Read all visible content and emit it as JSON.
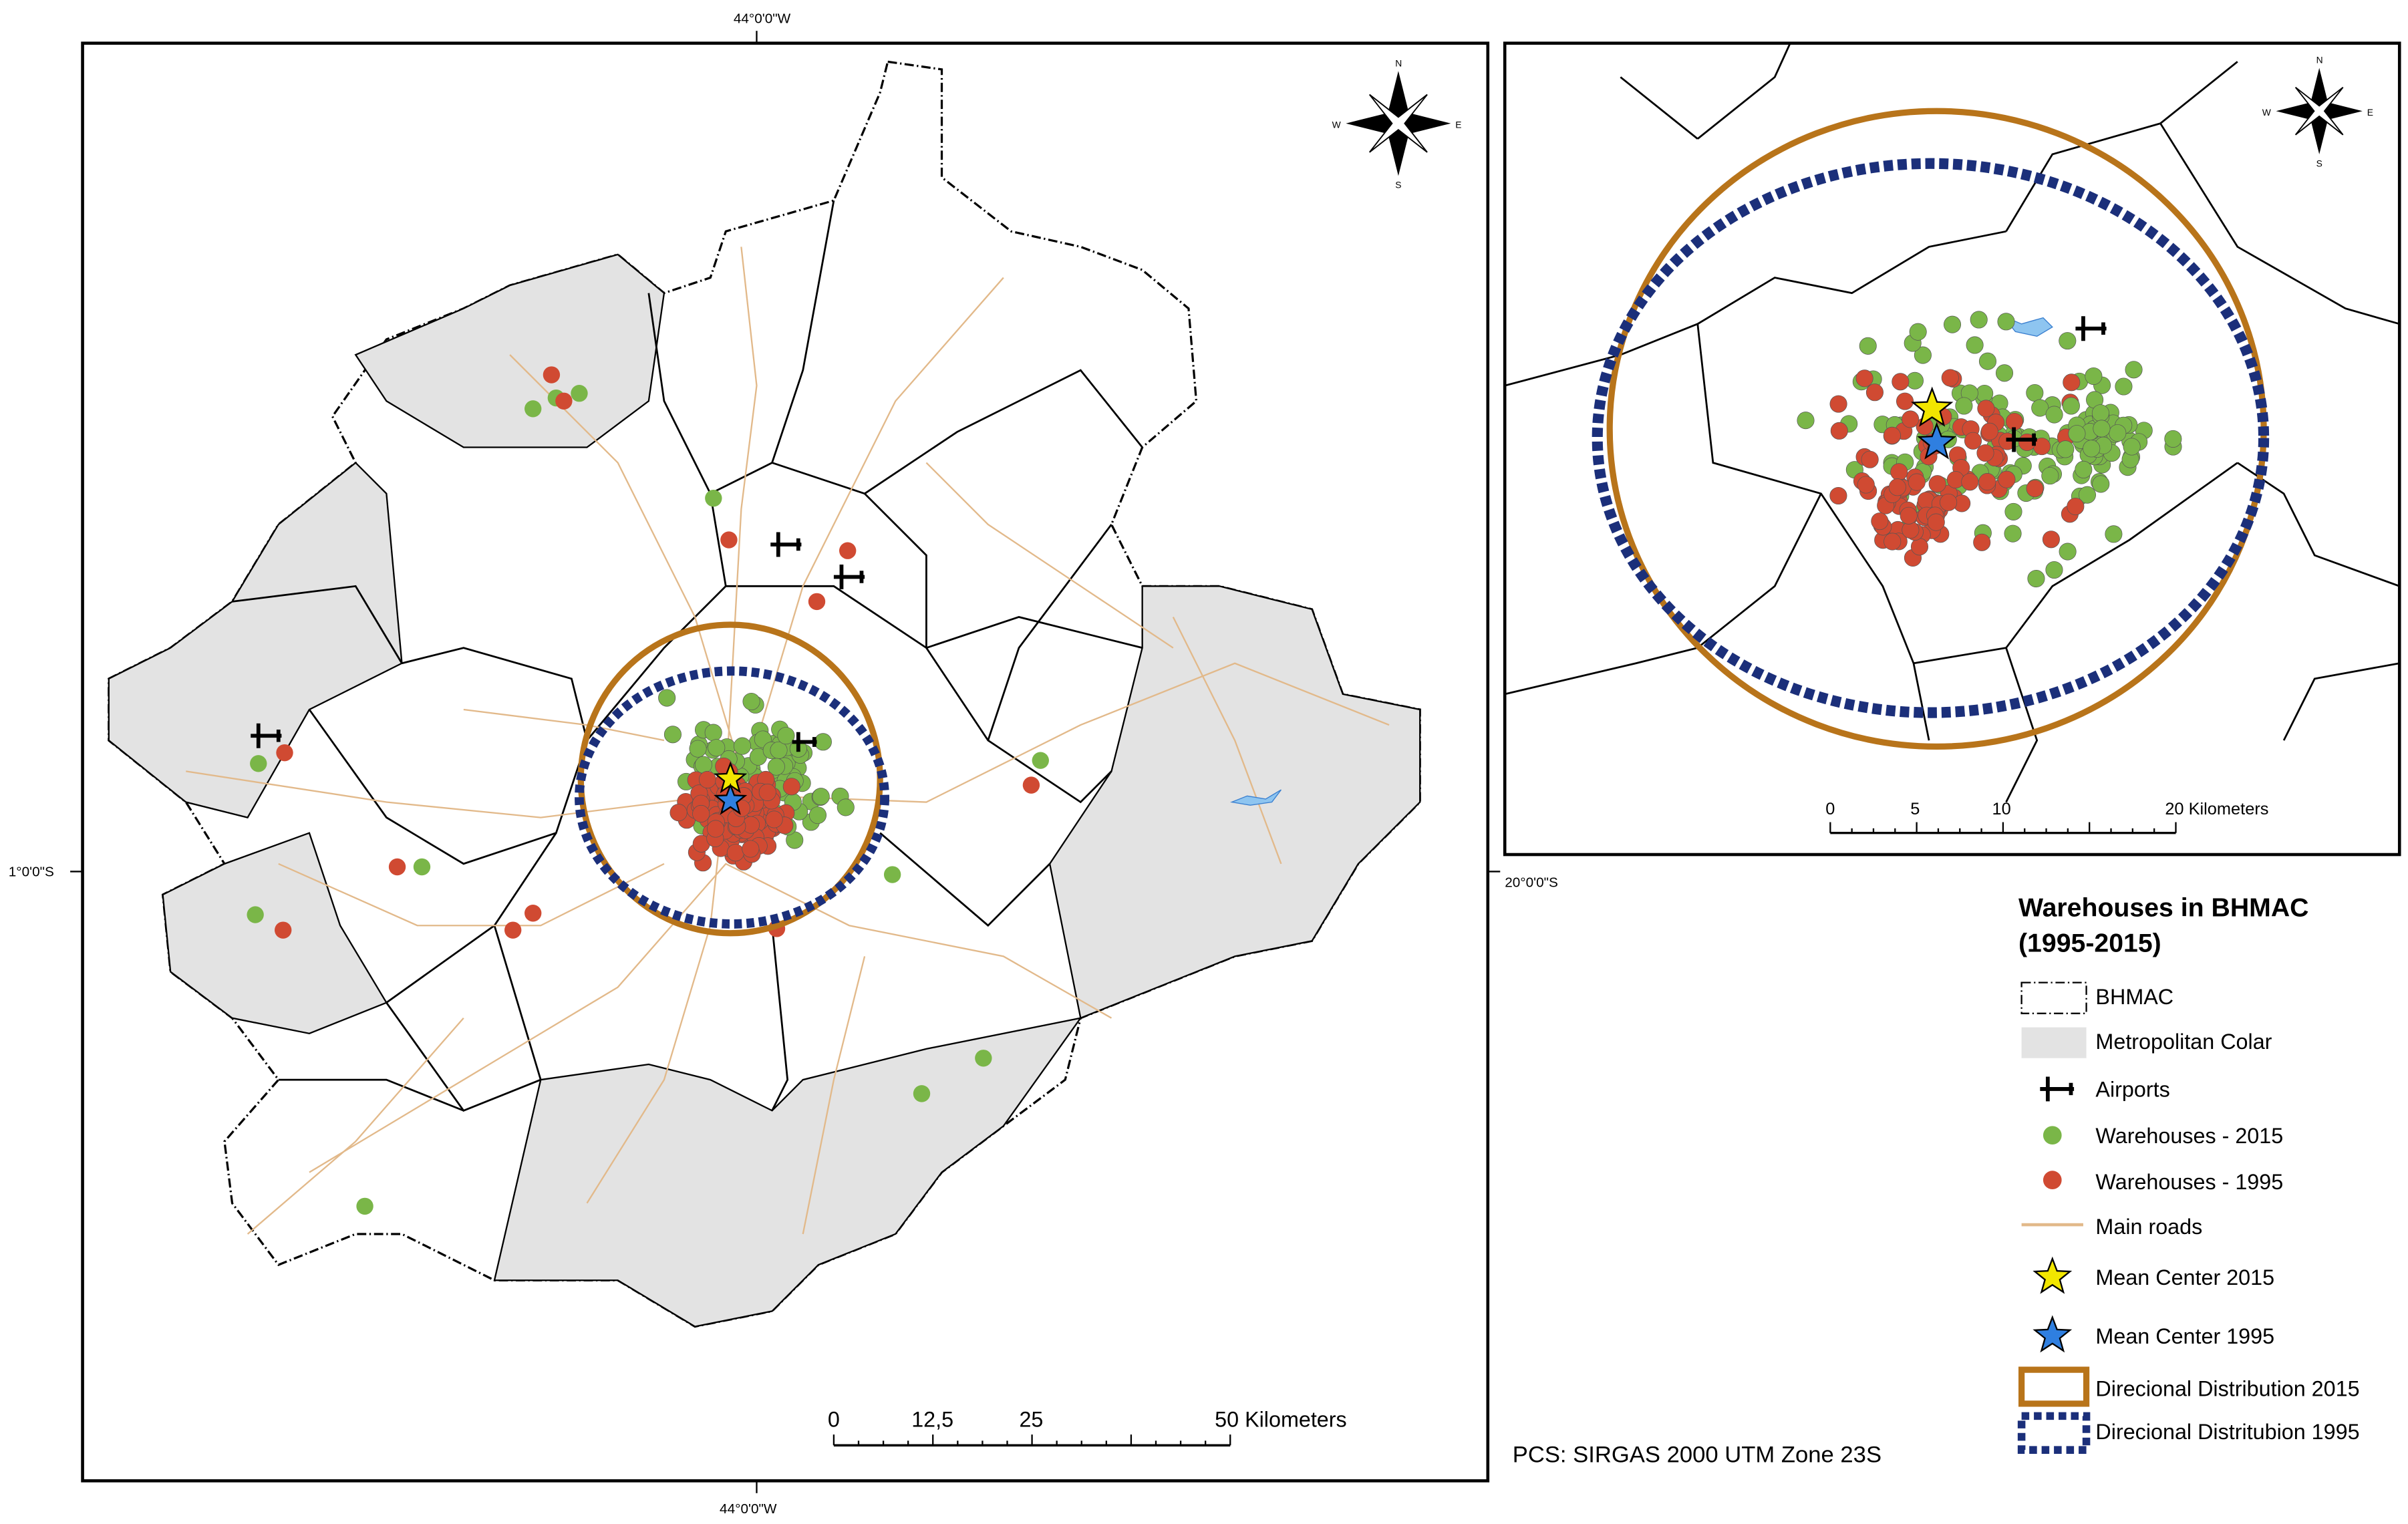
{
  "graticule": {
    "top": "44°0'0\"W",
    "bottom": "44°0'0\"W",
    "left": "1°0'0\"S",
    "right": "20°0'0\"S"
  },
  "compass": {
    "n": "N",
    "s": "S",
    "e": "E",
    "w": "W"
  },
  "main_scale": {
    "labels": [
      "0",
      "12,5",
      "25",
      "50 Kilometers"
    ]
  },
  "inset_scale": {
    "labels": [
      "0",
      "5",
      "10",
      "20 Kilometers"
    ]
  },
  "legend": {
    "title_lines": [
      "Warehouses in BHMAC",
      "(1995-2015)"
    ],
    "items": [
      "BHMAC",
      "Metropolitan Colar",
      "Airports",
      "Warehouses - 2015",
      "Warehouses - 1995",
      "Main roads",
      "Mean Center 2015",
      "Mean Center 1995",
      "Direcional Distribution 2015",
      "Direcional Distritubion 1995"
    ]
  },
  "note": "PCS: SIRGAS 2000 UTM Zone 23S"
}
